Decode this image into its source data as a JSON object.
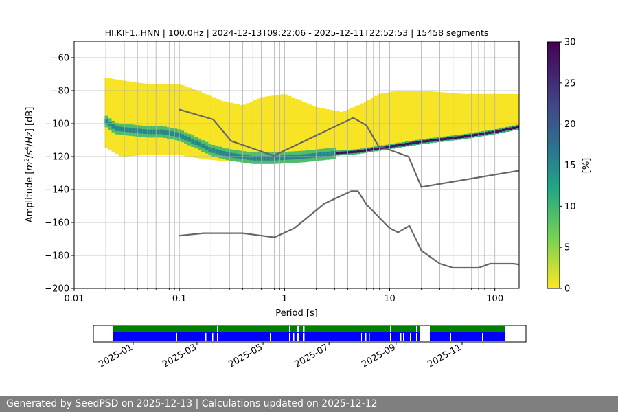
{
  "chart_data": {
    "type": "heatmap",
    "title": "HI.KIF1..HNN | 100.0Hz | 2024-12-13T09:22:06 - 2025-12-11T22:52:53 | 15458 segments",
    "xlabel": "Period [s]",
    "ylabel_parts": [
      "Amplitude [",
      "m",
      "2",
      "/",
      "s",
      "4",
      "/",
      "Hz",
      "] [dB]"
    ],
    "x_scale": "log",
    "xlim": [
      0.01,
      170
    ],
    "ylim": [
      -200,
      -50
    ],
    "xticks": [
      {
        "v": 0.01,
        "label": "0.01"
      },
      {
        "v": 0.1,
        "label": "0.1"
      },
      {
        "v": 1,
        "label": "1"
      },
      {
        "v": 10,
        "label": "10"
      },
      {
        "v": 100,
        "label": "100"
      }
    ],
    "yticks": [
      {
        "v": -60,
        "label": "−60"
      },
      {
        "v": -80,
        "label": "−80"
      },
      {
        "v": -100,
        "label": "−100"
      },
      {
        "v": -120,
        "label": "−120"
      },
      {
        "v": -140,
        "label": "−140"
      },
      {
        "v": -160,
        "label": "−160"
      },
      {
        "v": -180,
        "label": "−180"
      },
      {
        "v": -200,
        "label": "−200"
      }
    ],
    "grid": true,
    "colorbar": {
      "label": "[%]",
      "min": 0,
      "max": 30,
      "ticks": [
        {
          "v": 0,
          "label": "0"
        },
        {
          "v": 5,
          "label": "5"
        },
        {
          "v": 10,
          "label": "10"
        },
        {
          "v": 15,
          "label": "15"
        },
        {
          "v": 20,
          "label": "20"
        },
        {
          "v": 25,
          "label": "25"
        },
        {
          "v": 30,
          "label": "30"
        }
      ],
      "colormap": "viridis"
    },
    "psd_distribution": {
      "period_range": [
        0.0195,
        170
      ],
      "lower_edge": [
        [
          0.0195,
          -114
        ],
        [
          0.028,
          -120
        ],
        [
          0.05,
          -119
        ],
        [
          0.1,
          -119
        ],
        [
          0.15,
          -121
        ],
        [
          0.2,
          -122
        ],
        [
          0.3,
          -123
        ],
        [
          0.5,
          -123
        ],
        [
          0.8,
          -122
        ],
        [
          1.2,
          -121
        ],
        [
          2,
          -120
        ],
        [
          5,
          -117
        ],
        [
          10,
          -113
        ],
        [
          20,
          -110
        ],
        [
          50,
          -107
        ],
        [
          100,
          -104
        ],
        [
          170,
          -102
        ]
      ],
      "upper_edge": [
        [
          0.0195,
          -72
        ],
        [
          0.03,
          -74
        ],
        [
          0.05,
          -76
        ],
        [
          0.1,
          -76
        ],
        [
          0.15,
          -80
        ],
        [
          0.25,
          -86
        ],
        [
          0.4,
          -89
        ],
        [
          0.6,
          -84
        ],
        [
          1,
          -82
        ],
        [
          2,
          -90
        ],
        [
          3.5,
          -93
        ],
        [
          5,
          -89
        ],
        [
          8,
          -82
        ],
        [
          12,
          -80
        ],
        [
          20,
          -80
        ],
        [
          50,
          -82
        ],
        [
          100,
          -82
        ],
        [
          170,
          -82
        ]
      ],
      "mode_curve": [
        [
          0.0195,
          -98
        ],
        [
          0.025,
          -103
        ],
        [
          0.035,
          -104
        ],
        [
          0.05,
          -105
        ],
        [
          0.07,
          -105
        ],
        [
          0.1,
          -107
        ],
        [
          0.15,
          -112
        ],
        [
          0.2,
          -116
        ],
        [
          0.3,
          -119
        ],
        [
          0.5,
          -121
        ],
        [
          0.8,
          -121
        ],
        [
          1.5,
          -120
        ],
        [
          3,
          -118
        ],
        [
          5,
          -117
        ],
        [
          10,
          -114
        ],
        [
          20,
          -111
        ],
        [
          50,
          -108
        ],
        [
          100,
          -105
        ],
        [
          170,
          -102
        ]
      ]
    },
    "series": [
      {
        "x": [
          0.1,
          0.21,
          0.31,
          0.79,
          4.5,
          6.0,
          7.8,
          15.1,
          20.0,
          170
        ],
        "y": [
          -91.5,
          -97.5,
          -110.5,
          -119.5,
          -96.5,
          -101.0,
          -113.5,
          -120.0,
          -138.5,
          -128.5
        ]
      },
      {
        "x": [
          0.1,
          0.17,
          0.4,
          0.8,
          1.24,
          2.4,
          4.3,
          5.0,
          6.0,
          10.0,
          12.0,
          15.4,
          20.0,
          30.0,
          40.0,
          70.0,
          90.0,
          110.0,
          150.0,
          170.0
        ],
        "y": [
          -168.0,
          -166.5,
          -166.5,
          -169.0,
          -163.5,
          -148.5,
          -141.0,
          -141.0,
          -149.0,
          -163.5,
          -166.0,
          -162.0,
          -177.0,
          -185.0,
          -187.5,
          -187.5,
          -185.0,
          -185.0,
          -185.0,
          -185.5
        ]
      }
    ],
    "availability": {
      "date_ticks": [
        "2025-01",
        "2025-03",
        "2025-05",
        "2025-07",
        "2025-09",
        "2025-11"
      ],
      "range": [
        "2024-12-13",
        "2025-12-11"
      ],
      "row_colors": {
        "top": "#007f00",
        "bottom": "#0000ff"
      },
      "gap_periods": [
        [
          "2025-09-28",
          "2025-10-14"
        ]
      ]
    }
  },
  "footer": {
    "text": "Generated by SeedPSD on 2025-12-13 | Calculations updated on 2025-12-12"
  }
}
